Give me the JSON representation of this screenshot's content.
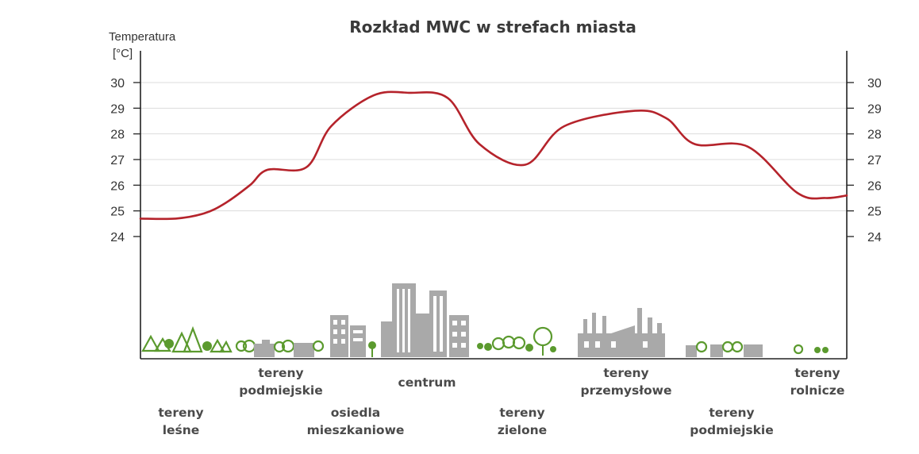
{
  "chart_data": {
    "type": "line",
    "title": "Rozkład MWC w strefach miasta",
    "ylabel_line1": "Temperatura",
    "ylabel_line2": "[°C]",
    "ylim": [
      24,
      30
    ],
    "yticks": [
      "30",
      "29",
      "28",
      "27",
      "26",
      "25",
      "24"
    ],
    "grid": true,
    "x_categories": [
      {
        "label_lines": [
          "tereny",
          "leśne"
        ]
      },
      {
        "label_lines": [
          "tereny",
          "podmiejskie"
        ]
      },
      {
        "label_lines": [
          "osiedla",
          "mieszkaniowe"
        ]
      },
      {
        "label_lines": [
          "centrum"
        ]
      },
      {
        "label_lines": [
          "tereny",
          "zielone"
        ]
      },
      {
        "label_lines": [
          "tereny",
          "przemysłowe"
        ]
      },
      {
        "label_lines": [
          "tereny",
          "podmiejskie"
        ]
      },
      {
        "label_lines": [
          "tereny",
          "rolnicze"
        ]
      }
    ],
    "series": [
      {
        "color": "#b5232b",
        "points": [
          [
            0.0,
            24.7
          ],
          [
            0.05,
            24.7
          ],
          [
            0.09,
            24.9
          ],
          [
            0.12,
            25.3
          ],
          [
            0.155,
            26.0
          ],
          [
            0.18,
            26.6
          ],
          [
            0.235,
            26.7
          ],
          [
            0.27,
            28.3
          ],
          [
            0.33,
            29.5
          ],
          [
            0.38,
            29.6
          ],
          [
            0.435,
            29.4
          ],
          [
            0.48,
            27.6
          ],
          [
            0.545,
            26.8
          ],
          [
            0.6,
            28.3
          ],
          [
            0.7,
            28.9
          ],
          [
            0.745,
            28.6
          ],
          [
            0.785,
            27.6
          ],
          [
            0.86,
            27.5
          ],
          [
            0.93,
            25.7
          ],
          [
            0.97,
            25.5
          ],
          [
            1.0,
            25.6
          ]
        ]
      }
    ]
  }
}
